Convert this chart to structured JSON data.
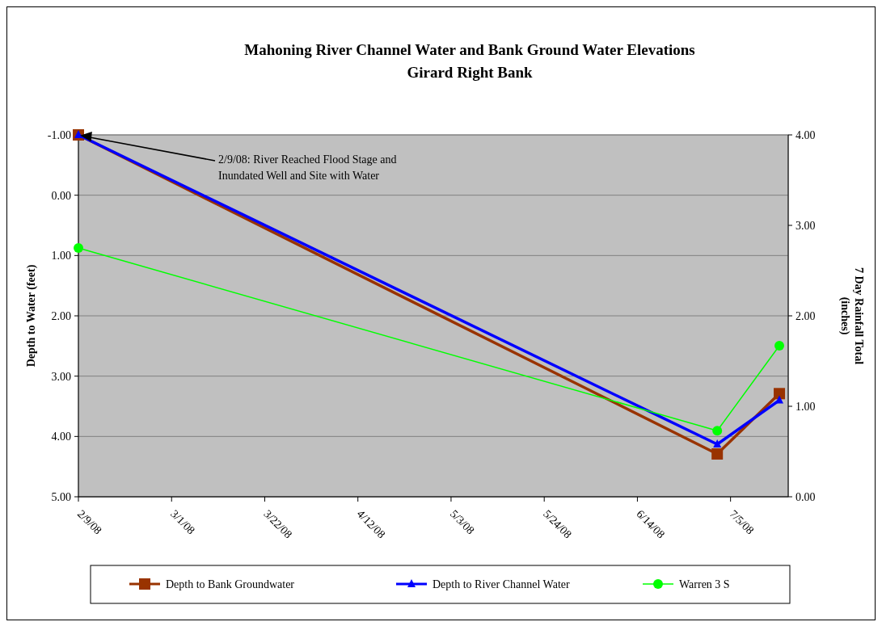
{
  "chart_data": {
    "type": "line",
    "title": "Mahoning River Channel Water and Bank Ground Water Elevations",
    "subtitle": "Girard Right Bank",
    "ylabel": "Depth to Water (feet)",
    "y2label": "7 Day Rainfall Total (inches)",
    "x": [
      "2008-02-09",
      "2008-07-02",
      "2008-07-16"
    ],
    "xlim": [
      "2008-02-09",
      "2008-07-18"
    ],
    "xticks": [
      {
        "value": "2008-02-09",
        "label": "2/9/08"
      },
      {
        "value": "2008-03-01",
        "label": "3/1/08"
      },
      {
        "value": "2008-03-22",
        "label": "3/22/08"
      },
      {
        "value": "2008-04-12",
        "label": "4/12/08"
      },
      {
        "value": "2008-05-03",
        "label": "5/3/08"
      },
      {
        "value": "2008-05-24",
        "label": "5/24/08"
      },
      {
        "value": "2008-06-14",
        "label": "6/14/08"
      },
      {
        "value": "2008-07-05",
        "label": "7/5/08"
      }
    ],
    "ylim": [
      5,
      -1
    ],
    "yticks": [
      {
        "value": -1,
        "label": "-1.00"
      },
      {
        "value": 0,
        "label": "0.00"
      },
      {
        "value": 1,
        "label": "1.00"
      },
      {
        "value": 2,
        "label": "2.00"
      },
      {
        "value": 3,
        "label": "3.00"
      },
      {
        "value": 4,
        "label": "4.00"
      },
      {
        "value": 5,
        "label": "5.00"
      }
    ],
    "y2lim": [
      0,
      4
    ],
    "y2ticks": [
      {
        "value": 0,
        "label": "0.00"
      },
      {
        "value": 1,
        "label": "1.00"
      },
      {
        "value": 2,
        "label": "2.00"
      },
      {
        "value": 3,
        "label": "3.00"
      },
      {
        "value": 4,
        "label": "4.00"
      }
    ],
    "grid": "y",
    "legend": "bottom",
    "series": [
      {
        "name": "Depth to Bank Groundwater",
        "color": "#993300",
        "marker": "square",
        "values": [
          -1.0,
          4.29,
          3.29
        ]
      },
      {
        "name": "Depth to River Channel Water",
        "color": "#0000ff",
        "marker": "triangle",
        "values": [
          -1.0,
          4.13,
          3.4
        ]
      },
      {
        "name": "Warren 3 S",
        "color": "#00ff00",
        "marker": "circle",
        "axis": "y2",
        "values": [
          2.75,
          0.73,
          1.67
        ]
      }
    ],
    "annotations": [
      "2/9/08: River Reached Flood Stage and Inundated Well and Site with Water"
    ]
  }
}
